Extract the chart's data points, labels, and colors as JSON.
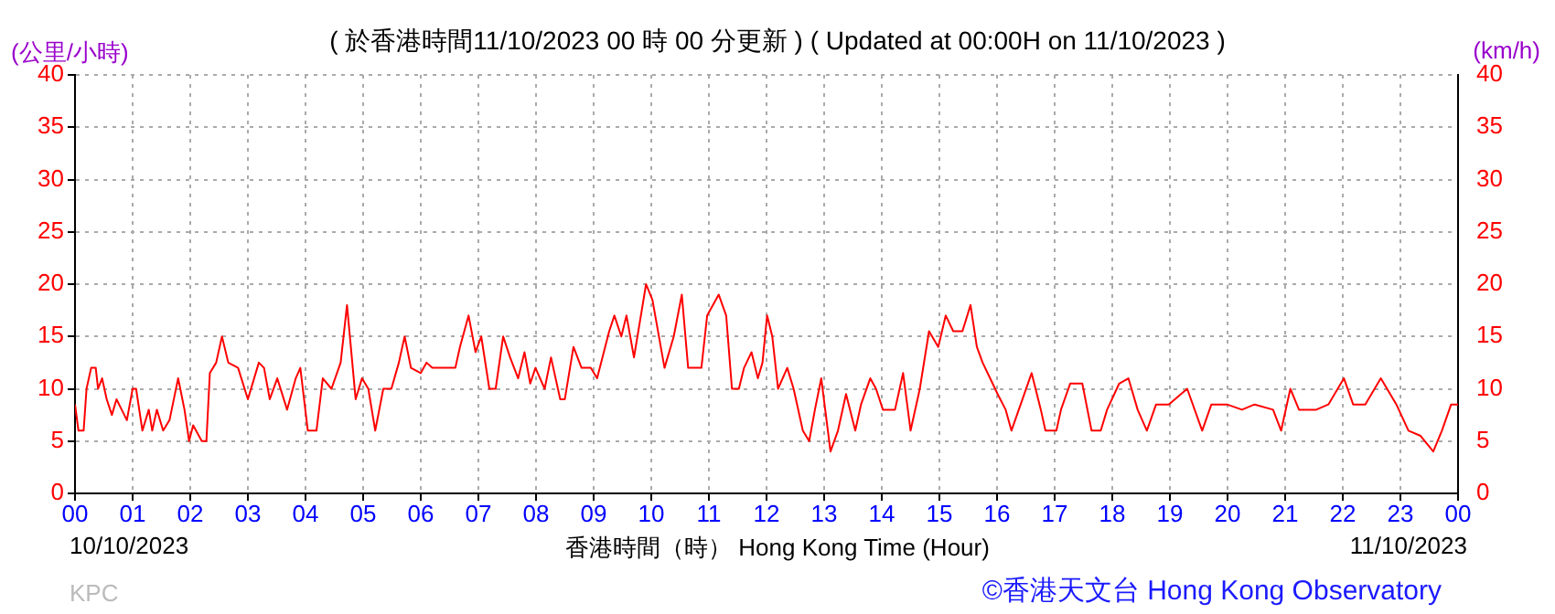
{
  "chart_data": {
    "type": "line",
    "title": "( 於香港時間11/10/2023 00 時 00 分更新 ) ( Updated at 00:00H on 11/10/2023 )",
    "xlabel": "香港時間（時） Hong Kong Time (Hour)",
    "ylabel": "(公里/小時)",
    "y2label": "(km/h)",
    "annotations": [
      "10/10/2023",
      "11/10/2023",
      "KPC",
      "©香港天文台 Hong Kong Observatory"
    ],
    "series": [
      {
        "color": "#ff0000",
        "x": [
          0,
          0.06,
          0.15,
          0.2,
          0.28,
          0.36,
          0.4,
          0.47,
          0.55,
          0.64,
          0.72,
          0.81,
          0.9,
          1,
          1.06,
          1.17,
          1.28,
          1.34,
          1.42,
          1.53,
          1.64,
          1.79,
          1.9,
          1.98,
          2.05,
          2.2,
          2.28,
          2.34,
          2.45,
          2.55,
          2.66,
          2.83,
          3,
          3.19,
          3.28,
          3.38,
          3.51,
          3.68,
          3.83,
          3.91,
          4.04,
          4.19,
          4.3,
          4.45,
          4.61,
          4.72,
          4.87,
          4.98,
          5.09,
          5.21,
          5.35,
          5.49,
          5.62,
          5.72,
          5.83,
          6,
          6.1,
          6.2,
          6.47,
          6.6,
          6.68,
          6.83,
          6.95,
          7.05,
          7.19,
          7.3,
          7.43,
          7.55,
          7.69,
          7.8,
          7.9,
          7.99,
          8.15,
          8.26,
          8.42,
          8.5,
          8.65,
          8.79,
          8.95,
          9.06,
          9.27,
          9.36,
          9.48,
          9.57,
          9.7,
          9.91,
          10.02,
          10.23,
          10.39,
          10.53,
          10.64,
          10.87,
          10.97,
          11.17,
          11.3,
          11.4,
          11.52,
          11.61,
          11.74,
          11.85,
          11.93,
          12.01,
          12.1,
          12.2,
          12.36,
          12.47,
          12.63,
          12.74,
          12.84,
          12.95,
          13.11,
          13.24,
          13.38,
          13.54,
          13.64,
          13.8,
          13.9,
          14.02,
          14.23,
          14.37,
          14.5,
          14.66,
          14.82,
          14.98,
          15.11,
          15.24,
          15.4,
          15.54,
          15.65,
          15.75,
          15.88,
          16.01,
          16.15,
          16.25,
          16.41,
          16.6,
          16.76,
          16.84,
          17.03,
          17.11,
          17.27,
          17.48,
          17.64,
          17.8,
          17.91,
          18.12,
          18.28,
          18.44,
          18.6,
          18.76,
          18.98,
          19.3,
          19.56,
          19.72,
          19.99,
          20.25,
          20.47,
          20.79,
          20.93,
          21.09,
          21.24,
          21.54,
          21.75,
          22.02,
          22.18,
          22.39,
          22.66,
          22.93,
          23.14,
          23.35,
          23.57,
          23.72,
          23.88,
          24
        ],
        "values": [
          8.5,
          6,
          6,
          10,
          12,
          12,
          10,
          11,
          9,
          7.5,
          9,
          8,
          7,
          10,
          10,
          6,
          8,
          6,
          8,
          6,
          7,
          11,
          8,
          5,
          6.5,
          5,
          5,
          11.5,
          12.5,
          15,
          12.5,
          12,
          9,
          12.5,
          12,
          9,
          11,
          8,
          11,
          12,
          6,
          6,
          11,
          10,
          12.5,
          18,
          9,
          11,
          10,
          6,
          10,
          10,
          12.5,
          15,
          12,
          11.5,
          12.5,
          12,
          12,
          12,
          14,
          17,
          13.5,
          15,
          10,
          10,
          15,
          13,
          11,
          13.5,
          10.5,
          12,
          10,
          13,
          9,
          9,
          14,
          12,
          12,
          11,
          15.5,
          17,
          15,
          17,
          13,
          20,
          18.5,
          12,
          15,
          19,
          12,
          12,
          17,
          19,
          17,
          10,
          10,
          12,
          13.5,
          11,
          12.5,
          17,
          15,
          10,
          12,
          10,
          6,
          5,
          8,
          11,
          4,
          6,
          9.5,
          6,
          8.5,
          11,
          10,
          8,
          8,
          11.5,
          6,
          10,
          15.5,
          14,
          17,
          15.5,
          15.5,
          18,
          14,
          12.5,
          11,
          9.5,
          8,
          6,
          8.5,
          11.5,
          8,
          6,
          6,
          8,
          10.5,
          10.5,
          6,
          6,
          8,
          10.5,
          11,
          8,
          6,
          8.5,
          8.5,
          10,
          6,
          8.5,
          8.5,
          8,
          8.5,
          8,
          6,
          10,
          8,
          8,
          8.5,
          11,
          8.5,
          8.5,
          11,
          8.5,
          6,
          5.5,
          4,
          6,
          8.5,
          8.5
        ]
      }
    ],
    "xlim": [
      0,
      24
    ],
    "xticks": [
      {
        "value": 0,
        "label": "00"
      },
      {
        "value": 1,
        "label": "01"
      },
      {
        "value": 2,
        "label": "02"
      },
      {
        "value": 3,
        "label": "03"
      },
      {
        "value": 4,
        "label": "04"
      },
      {
        "value": 5,
        "label": "05"
      },
      {
        "value": 6,
        "label": "06"
      },
      {
        "value": 7,
        "label": "07"
      },
      {
        "value": 8,
        "label": "08"
      },
      {
        "value": 9,
        "label": "09"
      },
      {
        "value": 10,
        "label": "10"
      },
      {
        "value": 11,
        "label": "11"
      },
      {
        "value": 12,
        "label": "12"
      },
      {
        "value": 13,
        "label": "13"
      },
      {
        "value": 14,
        "label": "14"
      },
      {
        "value": 15,
        "label": "15"
      },
      {
        "value": 16,
        "label": "16"
      },
      {
        "value": 17,
        "label": "17"
      },
      {
        "value": 18,
        "label": "18"
      },
      {
        "value": 19,
        "label": "19"
      },
      {
        "value": 20,
        "label": "20"
      },
      {
        "value": 21,
        "label": "21"
      },
      {
        "value": 22,
        "label": "22"
      },
      {
        "value": 23,
        "label": "23"
      },
      {
        "value": 24,
        "label": "00"
      }
    ],
    "ylim": [
      0,
      40
    ],
    "yticks": [
      0,
      5,
      10,
      15,
      20,
      25,
      30,
      35,
      40
    ],
    "y2lim": [
      0,
      40
    ],
    "y2ticks": [
      0,
      5,
      10,
      15,
      20,
      25,
      30,
      35,
      40
    ],
    "grid": true,
    "legend": false,
    "marker": "none",
    "line_style": "solid"
  }
}
